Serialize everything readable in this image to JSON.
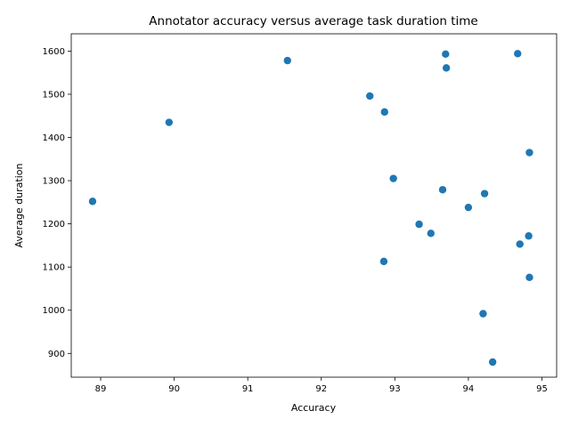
{
  "chart_data": {
    "type": "scatter",
    "title": "Annotator accuracy versus average task duration time",
    "xlabel": "Accuracy",
    "ylabel": "Average duration",
    "xlim": [
      88.6,
      95.2
    ],
    "ylim": [
      845,
      1640
    ],
    "xticks": [
      89,
      90,
      91,
      92,
      93,
      94,
      95
    ],
    "yticks": [
      900,
      1000,
      1100,
      1200,
      1300,
      1400,
      1500,
      1600
    ],
    "grid": false,
    "marker_color": "#1f77b4",
    "points": [
      {
        "x": 88.89,
        "y": 1252
      },
      {
        "x": 89.93,
        "y": 1435
      },
      {
        "x": 91.54,
        "y": 1578
      },
      {
        "x": 92.66,
        "y": 1496
      },
      {
        "x": 92.86,
        "y": 1459
      },
      {
        "x": 92.98,
        "y": 1305
      },
      {
        "x": 93.69,
        "y": 1593
      },
      {
        "x": 93.7,
        "y": 1561
      },
      {
        "x": 94.67,
        "y": 1594
      },
      {
        "x": 94.83,
        "y": 1365
      },
      {
        "x": 93.65,
        "y": 1279
      },
      {
        "x": 94.22,
        "y": 1270
      },
      {
        "x": 94.0,
        "y": 1238
      },
      {
        "x": 93.33,
        "y": 1199
      },
      {
        "x": 93.49,
        "y": 1178
      },
      {
        "x": 94.82,
        "y": 1172
      },
      {
        "x": 94.7,
        "y": 1153
      },
      {
        "x": 92.85,
        "y": 1113
      },
      {
        "x": 94.83,
        "y": 1076
      },
      {
        "x": 94.2,
        "y": 992
      },
      {
        "x": 94.33,
        "y": 880
      }
    ]
  }
}
